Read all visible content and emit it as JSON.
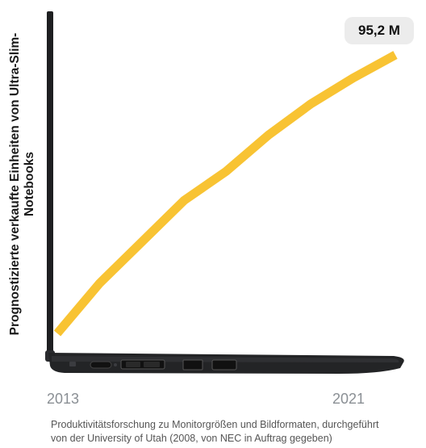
{
  "chart_data": {
    "type": "line",
    "ylabel": "Prognostizierte verkaufte Einheiten von Ultra-Slim-Notebooks",
    "x_ticks": [
      "2013",
      "2021"
    ],
    "series": [
      {
        "x": [
          2013,
          2014,
          2015,
          2016,
          2017,
          2018,
          2019,
          2020,
          2021
        ],
        "values": [
          14.5,
          29.0,
          41.0,
          53.0,
          61.5,
          72.0,
          81.0,
          88.5,
          95.2
        ]
      }
    ],
    "end_label": "95,2 M",
    "line_color": "#f8c333"
  },
  "source": {
    "line1": "Produktivitätsforschung zu Monitorgrößen und Bildformaten, durchgeführt",
    "line2": "von der University of Utah (2008, von NEC in Auftrag gegeben)"
  }
}
